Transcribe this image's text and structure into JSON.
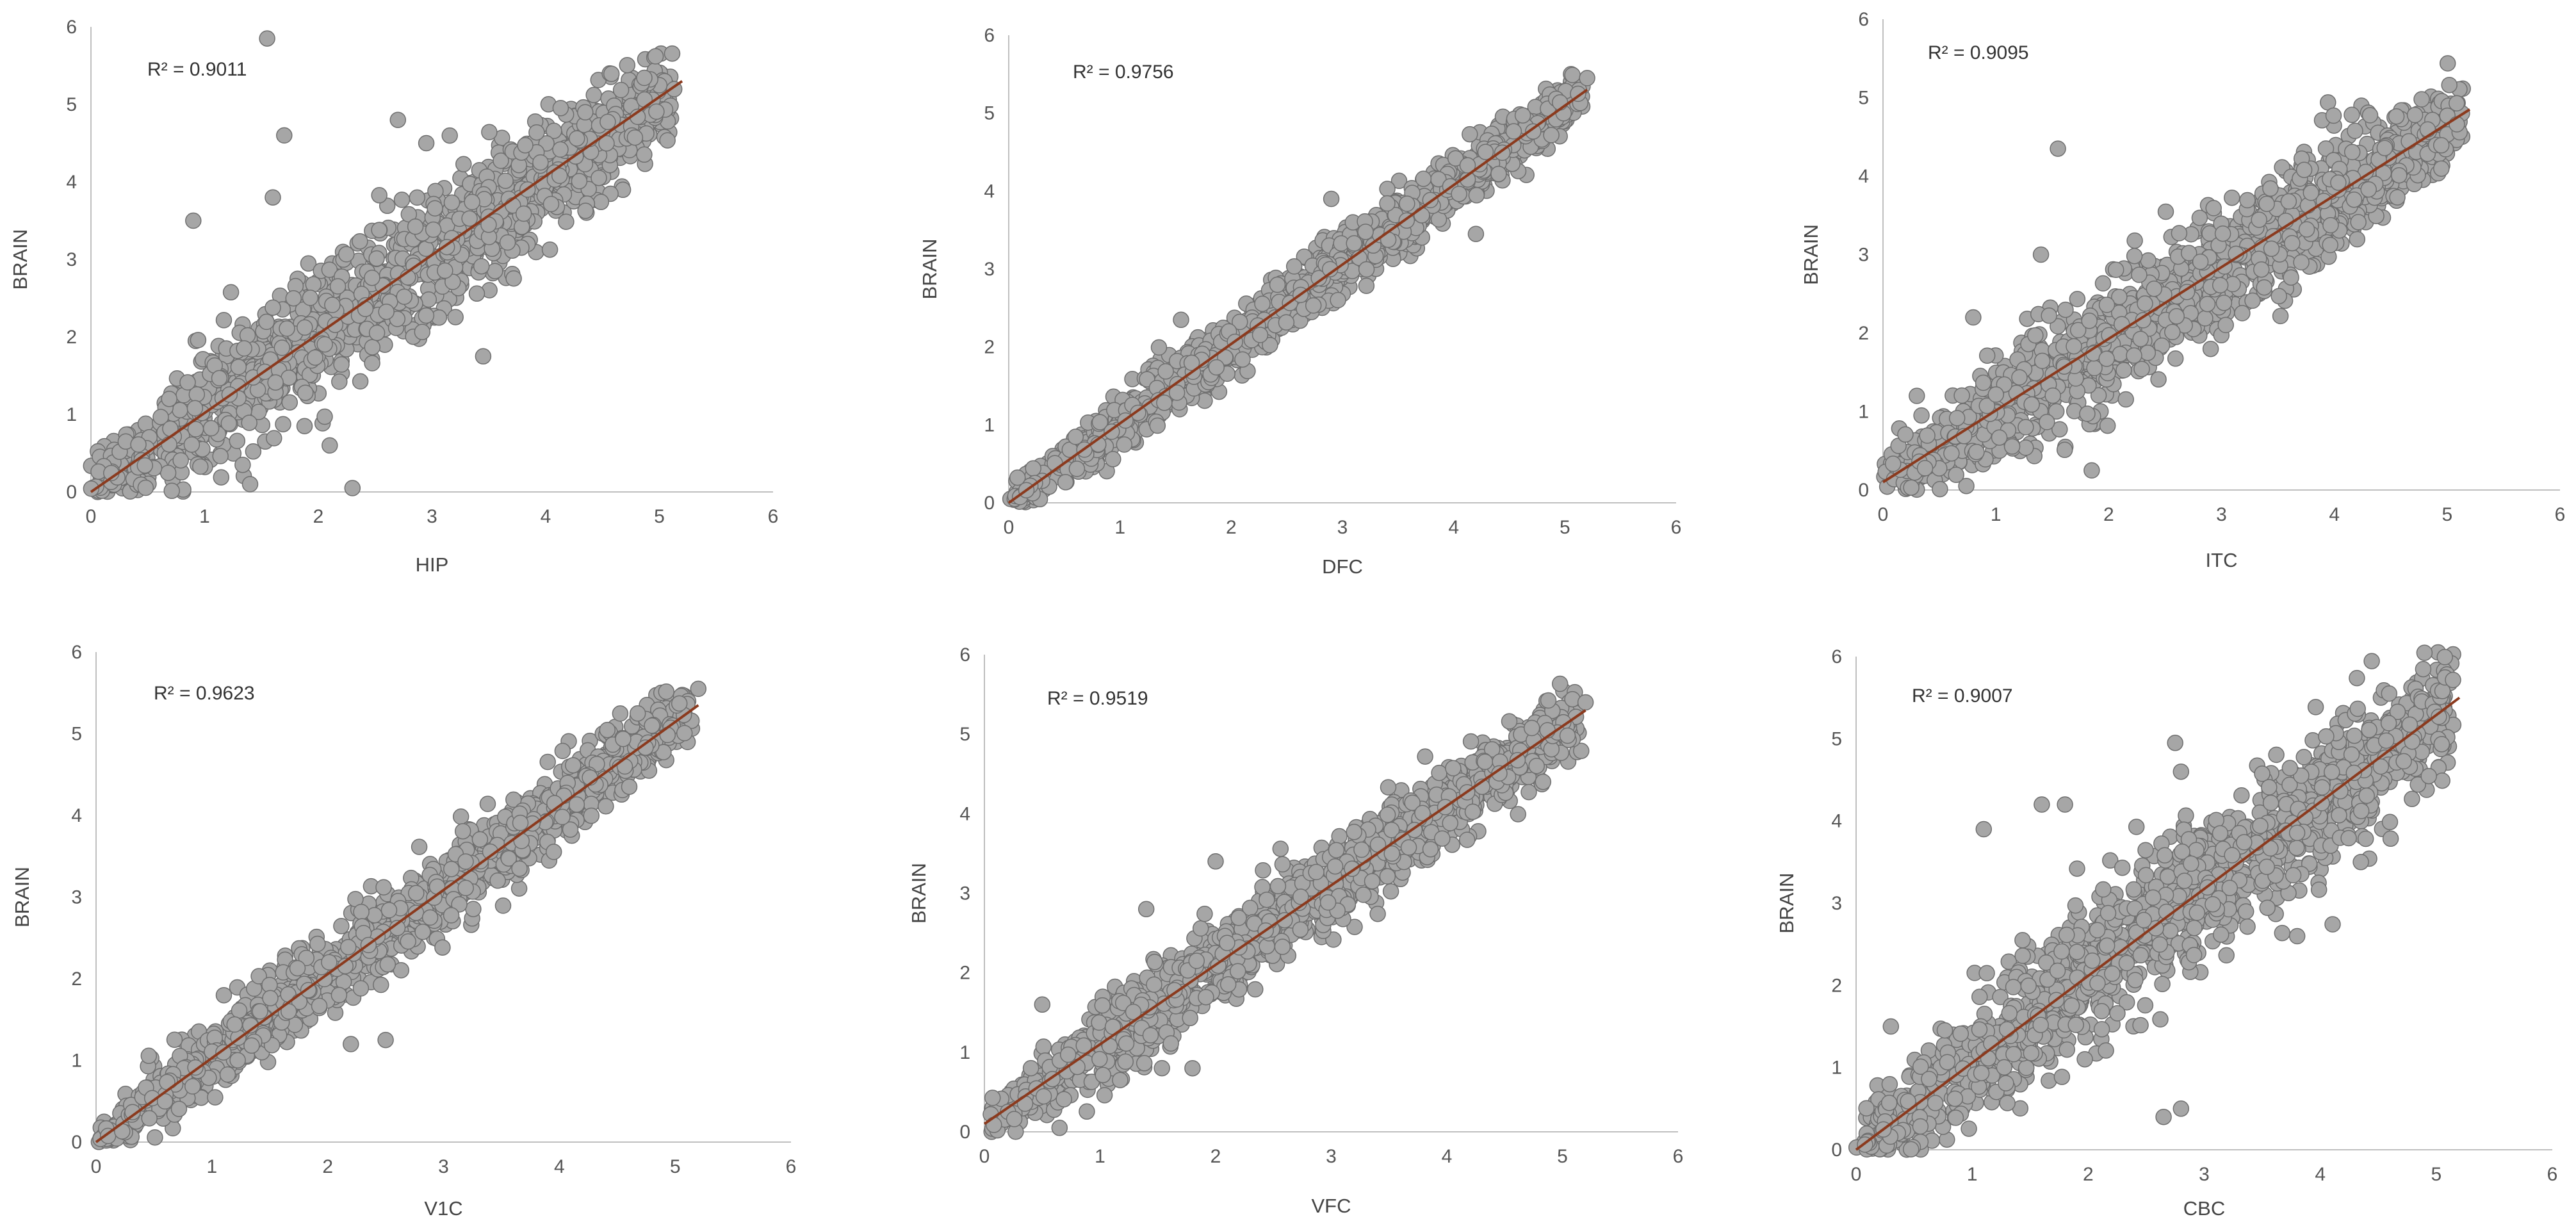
{
  "chart_data": [
    {
      "type": "scatter",
      "xlabel": "HIP",
      "ylabel": "BRAIN",
      "r_squared_label": "R² = 0.9011",
      "xlim": [
        0,
        6
      ],
      "ylim": [
        0,
        6
      ],
      "x_ticks": [
        "0",
        "1",
        "2",
        "3",
        "4",
        "5",
        "6"
      ],
      "y_ticks": [
        "0",
        "1",
        "2",
        "3",
        "4",
        "5",
        "6"
      ],
      "trendline": {
        "x": [
          0,
          5.2
        ],
        "y": [
          0,
          5.3
        ]
      },
      "spread": 0.42,
      "outliers": [
        [
          1.55,
          5.85
        ],
        [
          1.7,
          4.6
        ],
        [
          2.7,
          4.8
        ],
        [
          1.6,
          3.8
        ],
        [
          0.9,
          3.5
        ],
        [
          2.3,
          0.05
        ],
        [
          2.1,
          0.6
        ],
        [
          3.45,
          1.75
        ],
        [
          1.4,
          0.1
        ],
        [
          2.95,
          4.5
        ]
      ]
    },
    {
      "type": "scatter",
      "xlabel": "DFC",
      "ylabel": "BRAIN",
      "r_squared_label": "R² = 0.9756",
      "xlim": [
        0,
        6
      ],
      "ylim": [
        0,
        6
      ],
      "x_ticks": [
        "0",
        "1",
        "2",
        "3",
        "4",
        "5",
        "6"
      ],
      "y_ticks": [
        "0",
        "1",
        "2",
        "3",
        "4",
        "5",
        "6"
      ],
      "trendline": {
        "x": [
          0,
          5.2
        ],
        "y": [
          0,
          5.3
        ]
      },
      "spread": 0.2,
      "outliers": [
        [
          5.2,
          5.45
        ],
        [
          4.2,
          3.45
        ],
        [
          2.9,
          3.9
        ]
      ]
    },
    {
      "type": "scatter",
      "xlabel": "ITC",
      "ylabel": "BRAIN",
      "r_squared_label": "R² = 0.9095",
      "xlim": [
        0,
        6
      ],
      "ylim": [
        0,
        6
      ],
      "x_ticks": [
        "0",
        "1",
        "2",
        "3",
        "4",
        "5",
        "6"
      ],
      "y_ticks": [
        "0",
        "1",
        "2",
        "3",
        "4",
        "5",
        "6"
      ],
      "trendline": {
        "x": [
          0,
          5.2
        ],
        "y": [
          0.1,
          4.85
        ]
      },
      "spread": 0.38,
      "outliers": [
        [
          1.55,
          4.35
        ],
        [
          1.4,
          3.0
        ],
        [
          1.85,
          0.25
        ],
        [
          0.3,
          1.2
        ],
        [
          0.8,
          2.2
        ]
      ]
    },
    {
      "type": "scatter",
      "xlabel": "V1C",
      "ylabel": "BRAIN",
      "r_squared_label": "R² = 0.9623",
      "xlim": [
        0,
        6
      ],
      "ylim": [
        0,
        6
      ],
      "x_ticks": [
        "0",
        "1",
        "2",
        "3",
        "4",
        "5",
        "6"
      ],
      "y_ticks": [
        "0",
        "1",
        "2",
        "3",
        "4",
        "5",
        "6"
      ],
      "trendline": {
        "x": [
          0,
          5.2
        ],
        "y": [
          0,
          5.35
        ]
      },
      "spread": 0.24,
      "outliers": [
        [
          5.2,
          5.55
        ],
        [
          2.2,
          1.2
        ],
        [
          2.5,
          1.25
        ],
        [
          4.8,
          5.1
        ]
      ]
    },
    {
      "type": "scatter",
      "xlabel": "VFC",
      "ylabel": "BRAIN",
      "r_squared_label": "R² = 0.9519",
      "xlim": [
        0,
        6
      ],
      "ylim": [
        0,
        6
      ],
      "x_ticks": [
        "0",
        "1",
        "2",
        "3",
        "4",
        "5",
        "6"
      ],
      "y_ticks": [
        "0",
        "1",
        "2",
        "3",
        "4",
        "5",
        "6"
      ],
      "trendline": {
        "x": [
          0,
          5.2
        ],
        "y": [
          0.1,
          5.3
        ]
      },
      "spread": 0.27,
      "outliers": [
        [
          5.2,
          5.4
        ],
        [
          0.5,
          1.6
        ],
        [
          1.4,
          2.8
        ],
        [
          1.8,
          0.8
        ],
        [
          0.65,
          0.05
        ],
        [
          2.0,
          3.4
        ]
      ]
    },
    {
      "type": "scatter",
      "xlabel": "CBC",
      "ylabel": "BRAIN",
      "r_squared_label": "R² = 0.9007",
      "xlim": [
        0,
        6
      ],
      "ylim": [
        0,
        6
      ],
      "x_ticks": [
        "0",
        "1",
        "2",
        "3",
        "4",
        "5",
        "6"
      ],
      "y_ticks": [
        "0",
        "1",
        "2",
        "3",
        "4",
        "5",
        "6"
      ],
      "trendline": {
        "x": [
          0,
          5.2
        ],
        "y": [
          0,
          5.5
        ]
      },
      "spread": 0.45,
      "outliers": [
        [
          2.75,
          4.95
        ],
        [
          1.6,
          4.2
        ],
        [
          1.8,
          4.2
        ],
        [
          2.8,
          4.6
        ],
        [
          0.3,
          1.5
        ],
        [
          2.8,
          0.5
        ],
        [
          2.65,
          0.4
        ],
        [
          4.35,
          3.5
        ],
        [
          1.1,
          3.9
        ]
      ]
    }
  ]
}
